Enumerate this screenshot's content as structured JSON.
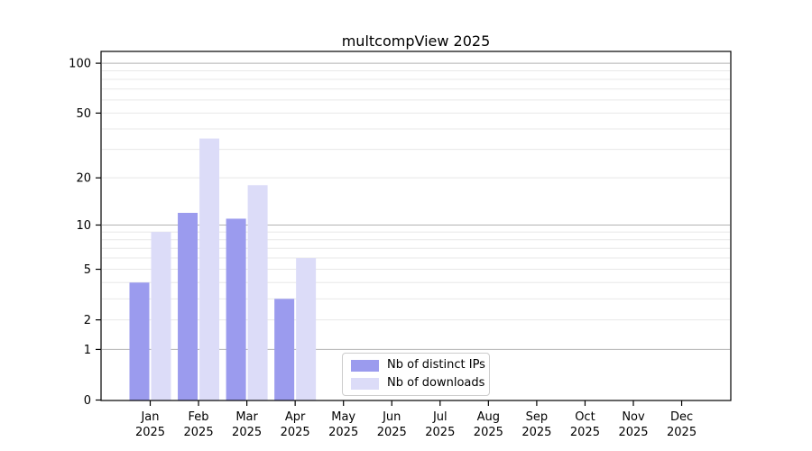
{
  "title": "multcompView 2025",
  "legend": {
    "items": [
      {
        "label": "Nb of distinct IPs",
        "color": "#9b9bee"
      },
      {
        "label": "Nb of downloads",
        "color": "#dcdcf8"
      }
    ]
  },
  "chart_data": {
    "type": "bar",
    "title": "multcompView 2025",
    "xlabel": "",
    "ylabel": "",
    "yscale": "log10(value+1)",
    "categories": [
      "Jan",
      "Feb",
      "Mar",
      "Apr",
      "May",
      "Jun",
      "Jul",
      "Aug",
      "Sep",
      "Oct",
      "Nov",
      "Dec"
    ],
    "year": "2025",
    "series": [
      {
        "name": "Nb of distinct IPs",
        "color": "#9b9bee",
        "values": [
          4,
          12,
          11,
          3,
          null,
          null,
          null,
          null,
          null,
          null,
          null,
          null
        ]
      },
      {
        "name": "Nb of downloads",
        "color": "#dcdcf8",
        "values": [
          9,
          35,
          18,
          6,
          null,
          null,
          null,
          null,
          null,
          null,
          null,
          null
        ]
      }
    ],
    "yticks": [
      0,
      1,
      2,
      5,
      10,
      20,
      50,
      100
    ],
    "major_gridlines": [
      1,
      10,
      100
    ],
    "minor_gridlines": [
      2,
      3,
      4,
      5,
      6,
      7,
      8,
      9,
      20,
      30,
      40,
      50,
      60,
      70,
      80,
      90
    ],
    "ylim": [
      0,
      117
    ],
    "grid": true,
    "legend_position": "lower center"
  },
  "colors": {
    "major_grid": "#b2b2b2",
    "minor_grid": "#e8e8e8",
    "spine": "#000000"
  }
}
